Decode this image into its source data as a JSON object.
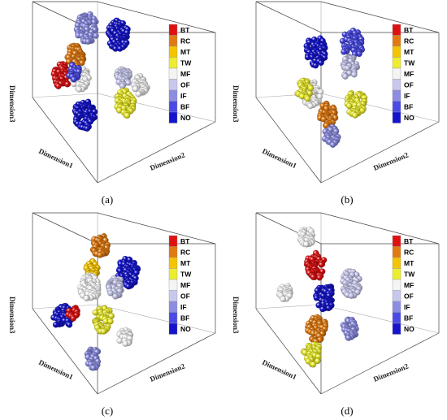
{
  "chart_data": [
    {
      "type": "scatter",
      "panel_label": "(a)",
      "xlabel": "Dimension1",
      "ylabel": "Dimension2",
      "zlabel": "Dimension3",
      "legend": [
        "BT",
        "RC",
        "MT",
        "TW",
        "MF",
        "OF",
        "IF",
        "BF",
        "NO"
      ],
      "clusters": [
        {
          "name": "IF",
          "cx": 0.42,
          "cy": 0.1,
          "r": 0.09,
          "count": 70
        },
        {
          "name": "NO",
          "cx": 0.66,
          "cy": 0.14,
          "r": 0.09,
          "count": 70
        },
        {
          "name": "RC",
          "cx": 0.33,
          "cy": 0.27,
          "r": 0.07,
          "count": 55
        },
        {
          "name": "BT",
          "cx": 0.23,
          "cy": 0.39,
          "r": 0.075,
          "count": 60
        },
        {
          "name": "MF",
          "cx": 0.37,
          "cy": 0.41,
          "r": 0.07,
          "count": 50
        },
        {
          "name": "BF",
          "cx": 0.32,
          "cy": 0.37,
          "r": 0.05,
          "count": 25
        },
        {
          "name": "OF",
          "cx": 0.7,
          "cy": 0.4,
          "r": 0.06,
          "count": 40
        },
        {
          "name": "MF",
          "cx": 0.83,
          "cy": 0.45,
          "r": 0.06,
          "count": 45
        },
        {
          "name": "TW",
          "cx": 0.71,
          "cy": 0.56,
          "r": 0.08,
          "count": 60
        },
        {
          "name": "NO",
          "cx": 0.4,
          "cy": 0.63,
          "r": 0.09,
          "count": 75
        }
      ]
    },
    {
      "type": "scatter",
      "panel_label": "(b)",
      "xlabel": "Dimension1",
      "ylabel": "Dimension2",
      "zlabel": "Dimension3",
      "legend": [
        "BT",
        "RC",
        "MT",
        "TW",
        "MF",
        "OF",
        "IF",
        "BF",
        "NO"
      ],
      "clusters": [
        {
          "name": "NO",
          "cx": 0.46,
          "cy": 0.24,
          "r": 0.09,
          "count": 70
        },
        {
          "name": "BF",
          "cx": 0.74,
          "cy": 0.2,
          "r": 0.09,
          "count": 70
        },
        {
          "name": "OF",
          "cx": 0.72,
          "cy": 0.34,
          "r": 0.07,
          "count": 40
        },
        {
          "name": "MF",
          "cx": 0.43,
          "cy": 0.5,
          "r": 0.08,
          "count": 60
        },
        {
          "name": "TW",
          "cx": 0.37,
          "cy": 0.48,
          "r": 0.06,
          "count": 35
        },
        {
          "name": "RC",
          "cx": 0.55,
          "cy": 0.63,
          "r": 0.07,
          "count": 50
        },
        {
          "name": "TW",
          "cx": 0.77,
          "cy": 0.56,
          "r": 0.08,
          "count": 60
        },
        {
          "name": "IF",
          "cx": 0.58,
          "cy": 0.76,
          "r": 0.06,
          "count": 35
        }
      ]
    },
    {
      "type": "scatter",
      "panel_label": "(c)",
      "xlabel": "Dimension1",
      "ylabel": "Dimension2",
      "zlabel": "Dimension3",
      "legend": [
        "BT",
        "RC",
        "MT",
        "TW",
        "MF",
        "OF",
        "IF",
        "BF",
        "NO"
      ],
      "clusters": [
        {
          "name": "RC",
          "cx": 0.52,
          "cy": 0.14,
          "r": 0.07,
          "count": 50
        },
        {
          "name": "MT",
          "cx": 0.46,
          "cy": 0.28,
          "r": 0.05,
          "count": 25
        },
        {
          "name": "MF",
          "cx": 0.44,
          "cy": 0.4,
          "r": 0.08,
          "count": 60
        },
        {
          "name": "NO",
          "cx": 0.73,
          "cy": 0.3,
          "r": 0.09,
          "count": 70
        },
        {
          "name": "OF",
          "cx": 0.64,
          "cy": 0.39,
          "r": 0.06,
          "count": 40
        },
        {
          "name": "NO",
          "cx": 0.23,
          "cy": 0.58,
          "r": 0.08,
          "count": 60
        },
        {
          "name": "BT",
          "cx": 0.31,
          "cy": 0.55,
          "r": 0.04,
          "count": 15
        },
        {
          "name": "TW",
          "cx": 0.54,
          "cy": 0.59,
          "r": 0.08,
          "count": 55
        },
        {
          "name": "MF",
          "cx": 0.71,
          "cy": 0.7,
          "r": 0.05,
          "count": 30
        },
        {
          "name": "IF",
          "cx": 0.47,
          "cy": 0.83,
          "r": 0.06,
          "count": 40
        }
      ]
    },
    {
      "type": "scatter",
      "panel_label": "(d)",
      "xlabel": "Dimension1",
      "ylabel": "Dimension2",
      "zlabel": "Dimension3",
      "legend": [
        "BT",
        "RC",
        "MT",
        "TW",
        "MF",
        "OF",
        "IF",
        "BF",
        "NO"
      ],
      "clusters": [
        {
          "name": "MF",
          "cx": 0.39,
          "cy": 0.09,
          "r": 0.06,
          "count": 35
        },
        {
          "name": "BT",
          "cx": 0.46,
          "cy": 0.26,
          "r": 0.08,
          "count": 55
        },
        {
          "name": "MF",
          "cx": 0.22,
          "cy": 0.42,
          "r": 0.05,
          "count": 30
        },
        {
          "name": "NO",
          "cx": 0.53,
          "cy": 0.45,
          "r": 0.08,
          "count": 55
        },
        {
          "name": "OF",
          "cx": 0.73,
          "cy": 0.37,
          "r": 0.08,
          "count": 55
        },
        {
          "name": "RC",
          "cx": 0.47,
          "cy": 0.65,
          "r": 0.08,
          "count": 55
        },
        {
          "name": "IF",
          "cx": 0.72,
          "cy": 0.65,
          "r": 0.06,
          "count": 40
        },
        {
          "name": "TW",
          "cx": 0.43,
          "cy": 0.8,
          "r": 0.07,
          "count": 45
        }
      ]
    }
  ],
  "colors": {
    "BT": "#dd1111",
    "RC": "#e07a10",
    "MT": "#f5c400",
    "TW": "#eded30",
    "MF": "#f4f4f4",
    "OF": "#c8c8ee",
    "IF": "#8c8ce2",
    "BF": "#4a4ae6",
    "NO": "#1414cc"
  }
}
